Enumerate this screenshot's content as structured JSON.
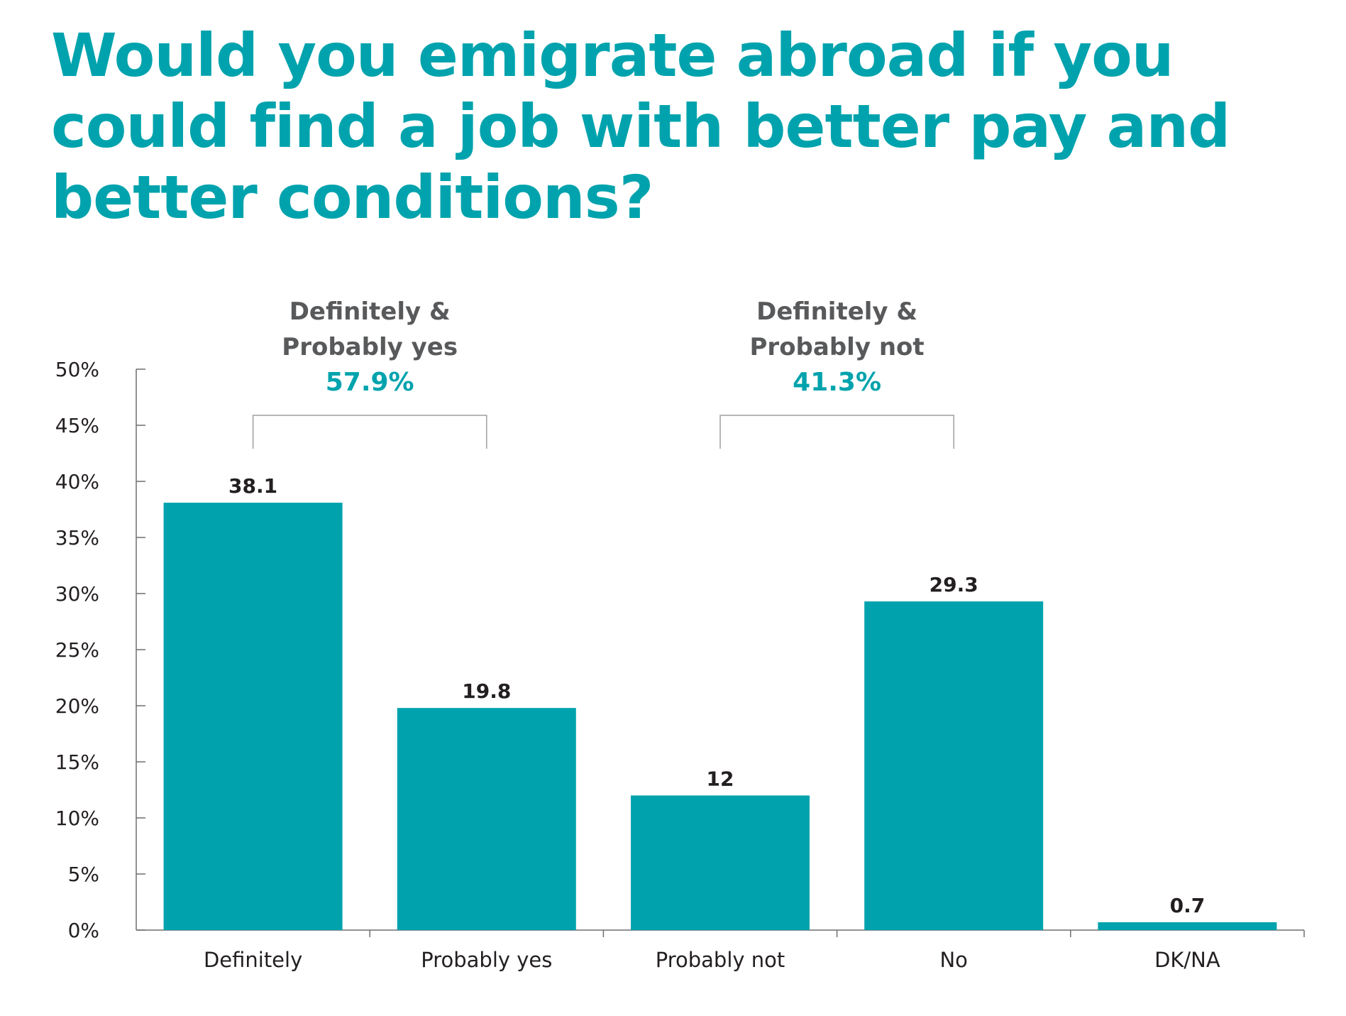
{
  "chart_data": {
    "type": "bar",
    "title": "Would you emigrate abroad if you could find a job with better pay and better conditions?",
    "categories": [
      "Definitely",
      "Probably yes",
      "Probably not",
      "No",
      "DK/NA"
    ],
    "values": [
      38.1,
      19.8,
      12,
      29.3,
      0.7
    ],
    "value_labels": [
      "38.1",
      "19.8",
      "12",
      "29.3",
      "0.7"
    ],
    "ylim": [
      0,
      50
    ],
    "yticks": [
      0,
      5,
      10,
      15,
      20,
      25,
      30,
      35,
      40,
      45,
      50
    ],
    "ytick_labels": [
      "0%",
      "5%",
      "10%",
      "15%",
      "20%",
      "25%",
      "30%",
      "35%",
      "40%",
      "45%",
      "50%"
    ],
    "xlabel": "",
    "ylabel": "",
    "grid": false,
    "bar_color": "#00a3ad",
    "annotations": [
      {
        "name": "group-yes",
        "lines": [
          "Definitely &",
          "Probably yes"
        ],
        "value": "57.9%",
        "spans": [
          0,
          1
        ]
      },
      {
        "name": "group-not",
        "lines": [
          "Definitely &",
          "Probably not"
        ],
        "value": "41.3%",
        "spans": [
          2,
          3
        ]
      }
    ]
  },
  "colors": {
    "accent": "#00a3ad",
    "annotation_text": "#58595b",
    "axis": "#6d6e71",
    "text": "#231f20"
  }
}
